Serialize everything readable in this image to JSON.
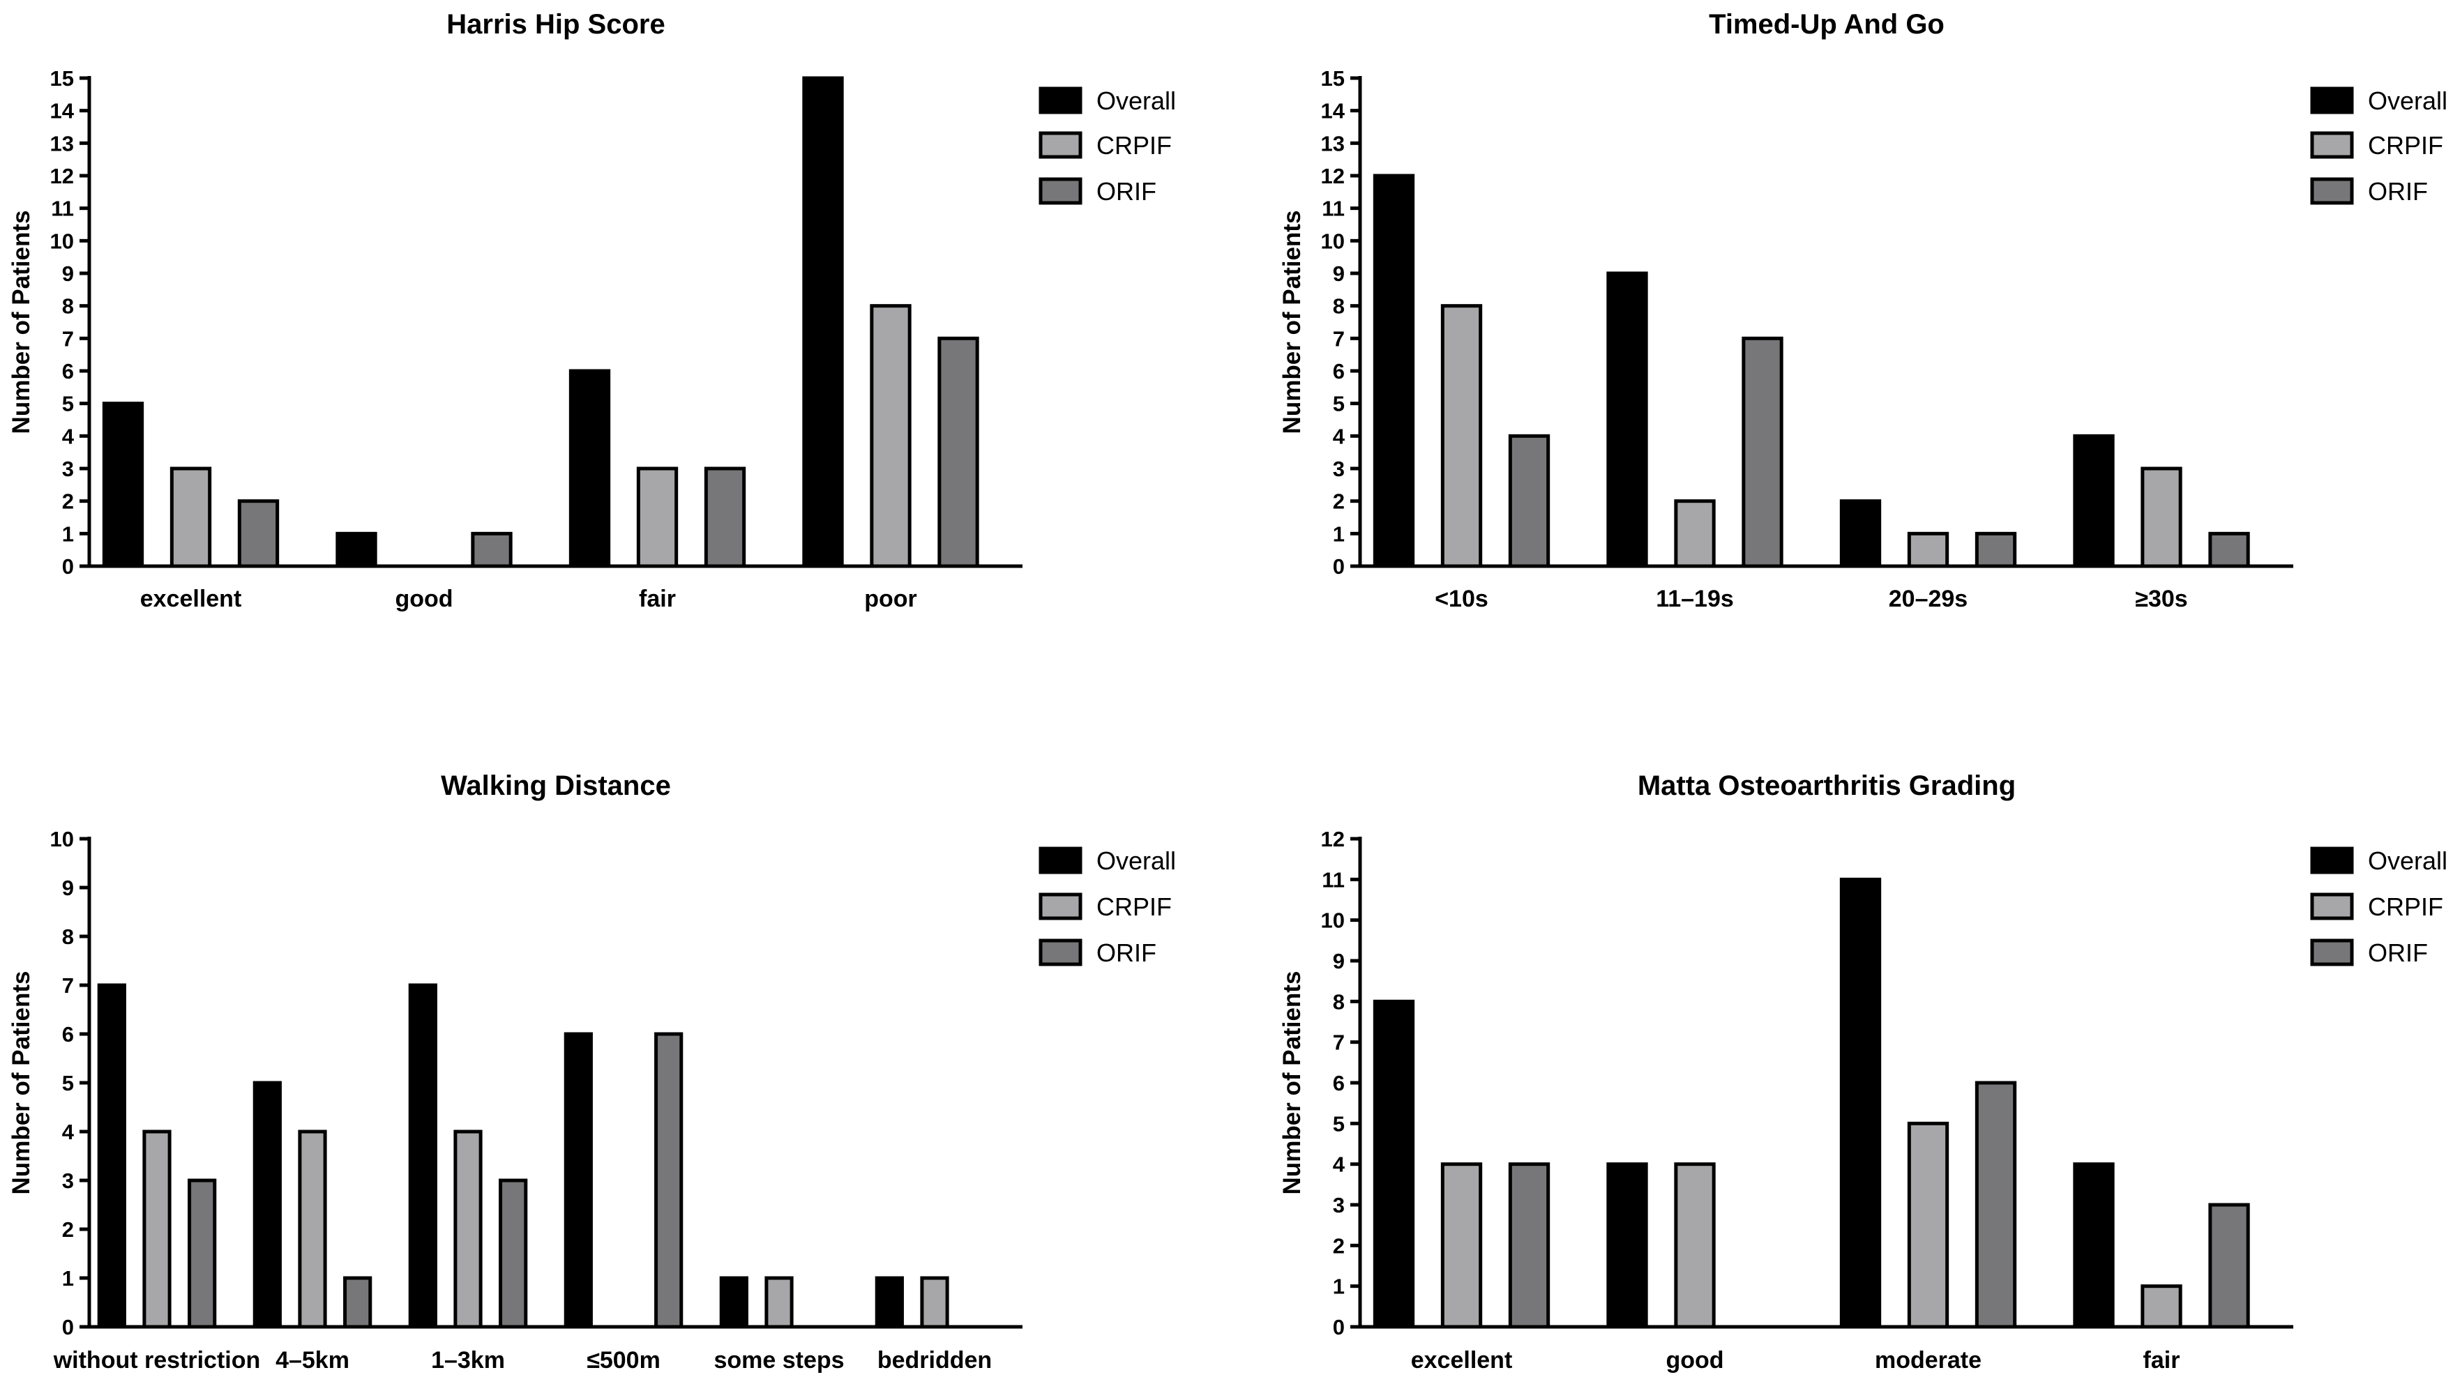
{
  "figure": {
    "legend_position": "top-right",
    "colors": {
      "Overall": "#000000",
      "CRPIF": "#a7a7a9",
      "ORIF": "#777779"
    }
  },
  "chart_data": [
    {
      "type": "bar",
      "title": "Harris Hip Score",
      "xlabel": "",
      "ylabel": "Number of Patients",
      "ylim": [
        0,
        15
      ],
      "categories": [
        "excellent",
        "good",
        "fair",
        "poor"
      ],
      "series": [
        {
          "name": "Overall",
          "values": [
            5,
            1,
            6,
            15
          ]
        },
        {
          "name": "CRPIF",
          "values": [
            3,
            0,
            3,
            8
          ]
        },
        {
          "name": "ORIF",
          "values": [
            2,
            1,
            3,
            7
          ]
        }
      ]
    },
    {
      "type": "bar",
      "title": "Timed-Up And Go",
      "xlabel": "",
      "ylabel": "Number of Patients",
      "ylim": [
        0,
        15
      ],
      "categories": [
        "<10s",
        "11–19s",
        "20–29s",
        "≥30s"
      ],
      "series": [
        {
          "name": "Overall",
          "values": [
            12,
            9,
            2,
            4
          ]
        },
        {
          "name": "CRPIF",
          "values": [
            8,
            2,
            1,
            3
          ]
        },
        {
          "name": "ORIF",
          "values": [
            4,
            7,
            1,
            1
          ]
        }
      ]
    },
    {
      "type": "bar",
      "title": "Walking Distance",
      "xlabel": "",
      "ylabel": "Number of Patients",
      "ylim": [
        0,
        10
      ],
      "categories": [
        "without restriction",
        "4–5km",
        "1–3km",
        "≤500m",
        "some steps",
        "bedridden"
      ],
      "series": [
        {
          "name": "Overall",
          "values": [
            7,
            5,
            7,
            6,
            1,
            1
          ]
        },
        {
          "name": "CRPIF",
          "values": [
            4,
            4,
            4,
            0,
            1,
            1
          ]
        },
        {
          "name": "ORIF",
          "values": [
            3,
            1,
            3,
            6,
            0,
            0
          ]
        }
      ]
    },
    {
      "type": "bar",
      "title": "Matta Osteoarthritis Grading",
      "xlabel": "",
      "ylabel": "Number of Patients",
      "ylim": [
        0,
        12
      ],
      "categories": [
        "excellent",
        "good",
        "moderate",
        "fair"
      ],
      "series": [
        {
          "name": "Overall",
          "values": [
            8,
            4,
            11,
            4
          ]
        },
        {
          "name": "CRPIF",
          "values": [
            4,
            4,
            5,
            1
          ]
        },
        {
          "name": "ORIF",
          "values": [
            4,
            0,
            6,
            3
          ]
        }
      ]
    }
  ]
}
